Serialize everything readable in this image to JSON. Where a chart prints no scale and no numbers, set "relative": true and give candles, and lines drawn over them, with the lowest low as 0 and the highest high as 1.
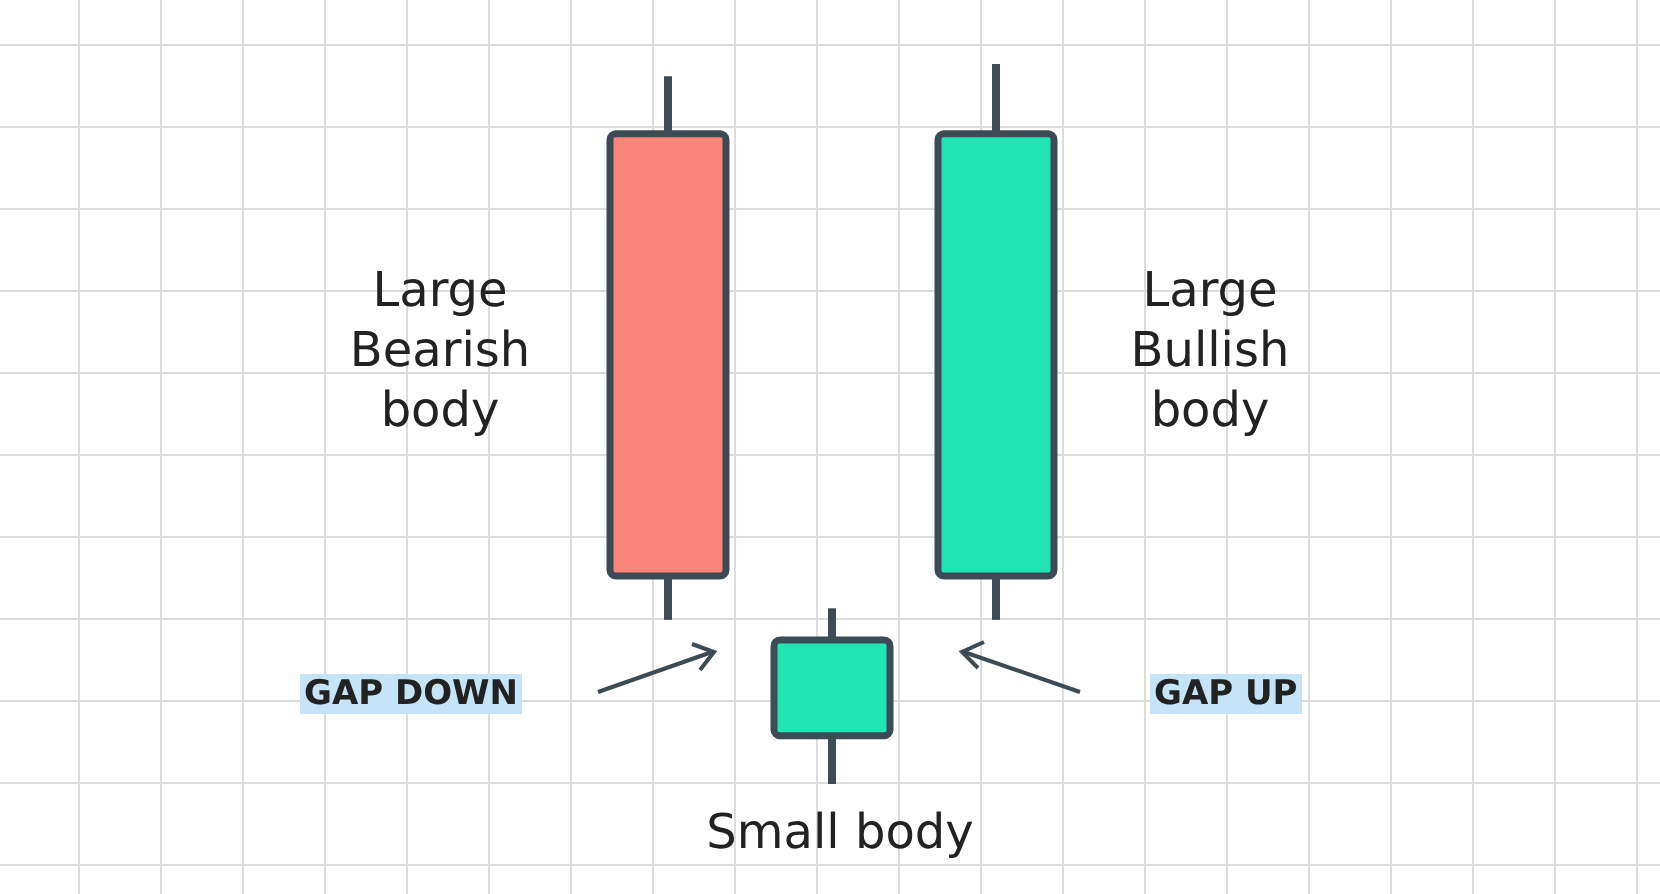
{
  "chart_data": {
    "type": "candlestick",
    "relative": true,
    "categories": [
      null,
      null,
      null
    ],
    "ohlc": [
      [
        0.903,
        0.983,
        0.228,
        0.289
      ],
      [
        0.067,
        0.244,
        0,
        0.2
      ],
      [
        0.289,
        1,
        0.228,
        0.903
      ]
    ],
    "colors": [
      "#fa8578",
      "#20e6b4",
      "#20e6b4"
    ],
    "annotations": [
      "Large Bearish body",
      "Small body",
      "Large Bullish body",
      "GAP DOWN",
      "GAP UP"
    ]
  }
}
